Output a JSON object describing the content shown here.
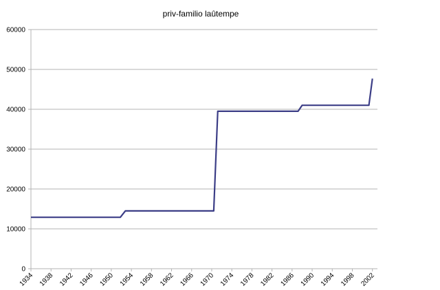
{
  "chart_data": {
    "type": "line",
    "title": "priv-familio laûtempe",
    "xlabel": "",
    "ylabel": "",
    "ylim": [
      0,
      60000
    ],
    "xlim": [
      1934,
      2003
    ],
    "y_ticks": [
      "0",
      "10000",
      "20000",
      "30000",
      "40000",
      "50000",
      "60000"
    ],
    "x_ticks": [
      "1934",
      "1938",
      "1942",
      "1946",
      "1950",
      "1954",
      "1958",
      "1962",
      "1966",
      "1970",
      "1974",
      "1978",
      "1982",
      "1986",
      "1990",
      "1994",
      "1998",
      "2002"
    ],
    "grid": true,
    "legend": "none",
    "series_color": "#3b3d86",
    "series": [
      {
        "x": [
          1934,
          1951.8,
          1952.8,
          1970.4,
          1971.2,
          1987.2,
          1988.0,
          2001.3,
          2002.0
        ],
        "y": [
          12900,
          12900,
          14500,
          14500,
          39500,
          39500,
          41000,
          41000,
          47700
        ]
      }
    ]
  }
}
